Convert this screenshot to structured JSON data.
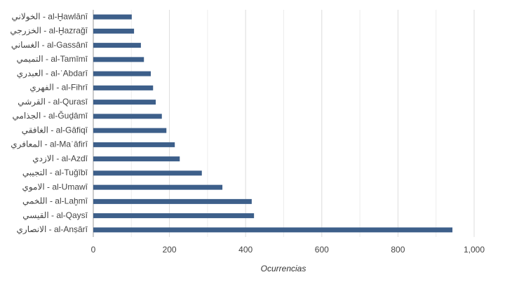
{
  "chart_data": {
    "type": "hbar",
    "x_label": "Ocurrencias",
    "categories": [
      "الخولاني - al-Ḫawlānī",
      "الخزرجي - al-Ḫazraǧī",
      "الغساني - al-Gassānī",
      "التميمي - al-Tamīmī",
      "العبدري - al-ʿAbdarī",
      "الفهري - al-Fihrī",
      "القرشي - al-Qurasī",
      "الجذامي - al-Ǧuḏāmī",
      "الغافقي - al-Gāfiqī",
      "المعافري - al-Maʿāfirī",
      "الازدي - al-Azdī",
      "التجيبي - al-Tuǧībī",
      "الاموي - al-Umawī",
      "اللخمي - al-Laḫmī",
      "القيسي - al-Qaysī",
      "الانصاري - al-Anṣārī"
    ],
    "values": [
      101,
      107,
      125,
      133,
      151,
      157,
      164,
      180,
      192,
      214,
      227,
      285,
      339,
      416,
      422,
      943
    ],
    "color": "#3d5f8a",
    "xlim": [
      0,
      1000
    ],
    "xticks": [
      0,
      200,
      400,
      600,
      800,
      {
        "value": 1000,
        "label": "1,000"
      }
    ],
    "minor_xticks": [
      100,
      300,
      500,
      700,
      900
    ],
    "grid": true
  }
}
